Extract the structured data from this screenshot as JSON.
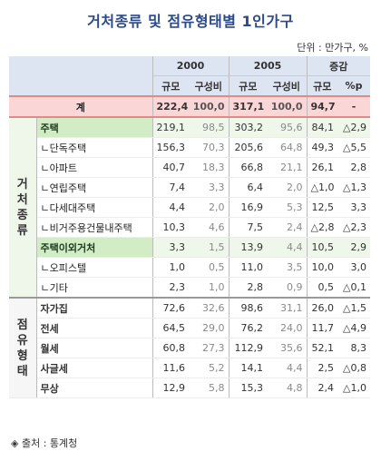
{
  "title": "거처종류 및 점유형태별 1인가구",
  "unit": "단위 : 만가구, %",
  "source": "◈ 출처 : 통계청",
  "colors": {
    "header_bg": "#dde4f2",
    "total_bg": "#fbd6d6",
    "highlight_bg": "#d2ecc6"
  },
  "chart_data": {
    "type": "table",
    "title": "거처종류 및 점유형태별 1인가구",
    "column_groups": [
      "2000",
      "2005",
      "증감"
    ],
    "columns": [
      "규모",
      "구성비",
      "규모",
      "구성비",
      "규모",
      "%p"
    ],
    "rows": [
      {
        "group": "",
        "label": "계",
        "values": [
          "222,4",
          "100,0",
          "317,1",
          "100,0",
          "94,7",
          "-"
        ]
      },
      {
        "group": "거처종류",
        "label": "주택",
        "values": [
          "219,1",
          "98,5",
          "303,2",
          "95,6",
          "84,1",
          "△2,9"
        ]
      },
      {
        "group": "거처종류",
        "label": "ㄴ단독주택",
        "values": [
          "156,3",
          "70,3",
          "205,6",
          "64,8",
          "49,3",
          "△5,5"
        ]
      },
      {
        "group": "거처종류",
        "label": "ㄴ아파트",
        "values": [
          "40,7",
          "18,3",
          "66,8",
          "21,1",
          "26,1",
          "2,8"
        ]
      },
      {
        "group": "거처종류",
        "label": "ㄴ연립주택",
        "values": [
          "7,4",
          "3,3",
          "6,4",
          "2,0",
          "△1,0",
          "△1,3"
        ]
      },
      {
        "group": "거처종류",
        "label": "ㄴ다세대주택",
        "values": [
          "4,4",
          "2,0",
          "16,9",
          "5,3",
          "12,5",
          "3,3"
        ]
      },
      {
        "group": "거처종류",
        "label": "ㄴ비거주용건물내주택",
        "values": [
          "10,3",
          "4,6",
          "7,5",
          "2,4",
          "△2,8",
          "△2,3"
        ]
      },
      {
        "group": "거처종류",
        "label": "주택이외거처",
        "values": [
          "3,3",
          "1,5",
          "13,9",
          "4,4",
          "10,5",
          "2,9"
        ]
      },
      {
        "group": "거처종류",
        "label": "ㄴ오피스텔",
        "values": [
          "1,0",
          "0,5",
          "11,0",
          "3,5",
          "10,0",
          "3,0"
        ]
      },
      {
        "group": "거처종류",
        "label": "ㄴ기타",
        "values": [
          "2,3",
          "1,0",
          "2,8",
          "0,9",
          "0,5",
          "△0,1"
        ]
      },
      {
        "group": "점유형태",
        "label": "자가집",
        "values": [
          "72,6",
          "32,6",
          "98,6",
          "31,1",
          "26,0",
          "△1,5"
        ]
      },
      {
        "group": "점유형태",
        "label": "전세",
        "values": [
          "64,5",
          "29,0",
          "76,2",
          "24,0",
          "11,7",
          "△4,9"
        ]
      },
      {
        "group": "점유형태",
        "label": "월세",
        "values": [
          "60,8",
          "27,3",
          "112,9",
          "35,6",
          "52,1",
          "8,3"
        ]
      },
      {
        "group": "점유형태",
        "label": "사글세",
        "values": [
          "11,6",
          "5,2",
          "14,1",
          "4,4",
          "2,5",
          "△0,8"
        ]
      },
      {
        "group": "점유형태",
        "label": "무상",
        "values": [
          "12,9",
          "5,8",
          "15,3",
          "4,8",
          "2,4",
          "△1,0"
        ]
      }
    ]
  }
}
